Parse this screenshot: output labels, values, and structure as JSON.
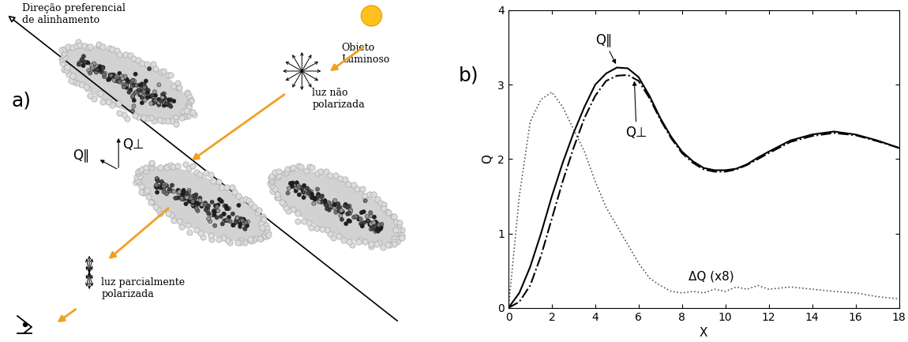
{
  "diagram": {
    "panel_label": "a)",
    "alignment_label": "Direção preferencial\nde alinhamento",
    "source_label": "Objeto\nLuminoso",
    "unpolarized_label": "luz não\npolarizada",
    "partially_polarized_label": "luz parcialmente\npolarizada",
    "q_parallel": "Q∥",
    "q_perp": "Q⊥"
  },
  "chart_data": {
    "type": "line",
    "title": "b)",
    "x_label": "X",
    "y_label": "Q",
    "x": [
      0,
      0.5,
      1,
      1.5,
      2,
      2.5,
      3,
      3.5,
      4,
      4.5,
      5,
      5.5,
      6,
      6.5,
      7,
      7.5,
      8,
      8.5,
      9,
      9.5,
      10,
      10.5,
      11,
      11.5,
      12,
      13,
      14,
      15,
      16,
      17,
      18
    ],
    "xlim": [
      0,
      18
    ],
    "ylim": [
      0,
      4
    ],
    "xticks": [
      0,
      2,
      4,
      6,
      8,
      10,
      12,
      14,
      16,
      18
    ],
    "yticks": [
      0,
      1,
      2,
      3,
      4
    ],
    "series": [
      {
        "name": "Q∥",
        "color": "#000000",
        "line_style": "solid",
        "values": [
          0,
          0.2,
          0.55,
          1.0,
          1.5,
          1.95,
          2.35,
          2.7,
          3.0,
          3.15,
          3.23,
          3.22,
          3.1,
          2.85,
          2.55,
          2.3,
          2.1,
          1.97,
          1.88,
          1.85,
          1.85,
          1.87,
          1.93,
          2.02,
          2.1,
          2.25,
          2.33,
          2.37,
          2.33,
          2.25,
          2.15
        ]
      },
      {
        "name": "Q⊥",
        "color": "#000000",
        "line_style": "dashdot",
        "values": [
          0,
          0.08,
          0.3,
          0.7,
          1.2,
          1.7,
          2.15,
          2.55,
          2.85,
          3.05,
          3.12,
          3.13,
          3.05,
          2.82,
          2.53,
          2.28,
          2.08,
          1.95,
          1.86,
          1.83,
          1.83,
          1.86,
          1.92,
          2.0,
          2.08,
          2.23,
          2.31,
          2.35,
          2.32,
          2.24,
          2.15
        ]
      },
      {
        "name": "ΔQ (x8)",
        "color": "#555555",
        "line_style": "dotted",
        "values": [
          0,
          1.5,
          2.5,
          2.8,
          2.9,
          2.7,
          2.4,
          2.1,
          1.7,
          1.35,
          1.1,
          0.85,
          0.6,
          0.4,
          0.3,
          0.22,
          0.2,
          0.22,
          0.2,
          0.25,
          0.22,
          0.28,
          0.25,
          0.3,
          0.25,
          0.28,
          0.25,
          0.22,
          0.2,
          0.15,
          0.12
        ]
      }
    ]
  }
}
